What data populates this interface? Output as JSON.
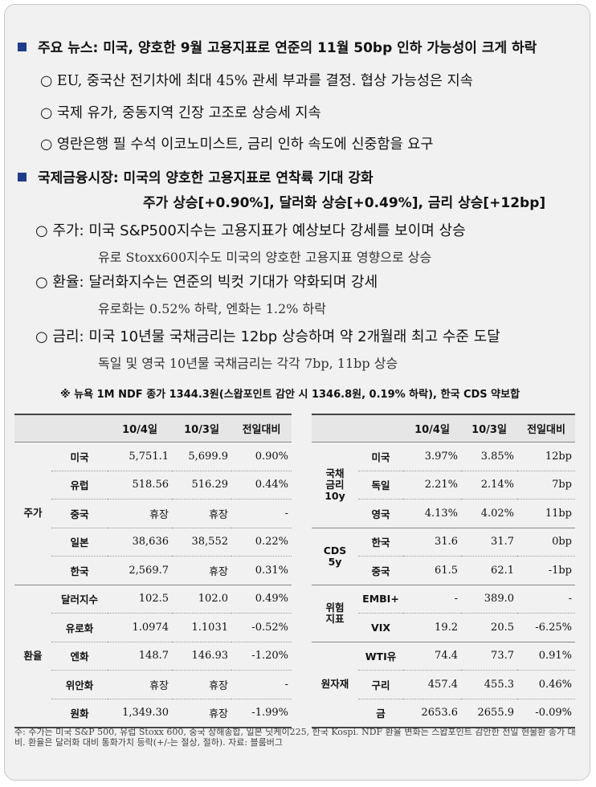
{
  "news_heading": "주요 뉴스: 미국, 양호한 9월 고용지표로 연준의 11월 50bp 인하 가능성이 크게 하락",
  "news_items": [
    "○ EU, 중국산 전기차에 최대 45% 관세 부과를 결정. 협상 가능성은 지속",
    "○ 국제 유가, 중동지역 긴장 고조로 상승세 지속",
    "○ 영란은행 필 수석 이코노미스트, 금리 인하 속도에 신중함을 요구"
  ],
  "market_heading": "국제금융시장: 미국의 양호한 고용지표로 연착륙 기대 강화",
  "market_heading2": "주가 상승[+0.90%], 달러화 상승[+0.49%], 금리 상승[+12bp]",
  "market_items": [
    {
      "main": "○ 주가: 미국 S&P500지수는 고용지표가 예상보다 강세를 보이며 상승",
      "detail": "유로 Stoxx600지수도 미국의 양호한 고용지표 영향으로 상승"
    },
    {
      "main": "○ 환율: 달러화지수는 연준의 빅컷 기대가 약화되며 강세",
      "detail": "유로화는 0.52% 하락, 엔화는 1.2% 하락"
    },
    {
      "main": "○ 금리: 미국 10년물 국채금리는 12bp 상승하며 약 2개월래 최고 수준 도달",
      "detail": "독일 및 영국 10년물 국채금리는 각각 7bp, 11bp 상승"
    }
  ],
  "ndf_note": "※ 뉴욕 1M NDF 종가 1344.3원(스왑포인트 감안 시 1346.8원, 0.19% 하락), 한국 CDS 약보합",
  "table_headers": [
    "10/4일",
    "10/3일",
    "전일대비"
  ],
  "left_table": {
    "groups": [
      {
        "name": "주가",
        "rows": [
          {
            "name": "미국",
            "v1": "5,751.1",
            "v2": "5,699.9",
            "chg": "0.90%"
          },
          {
            "name": "유럽",
            "v1": "518.56",
            "v2": "516.29",
            "chg": "0.44%"
          },
          {
            "name": "중국",
            "v1": "휴장",
            "v2": "휴장",
            "chg": "-"
          },
          {
            "name": "일본",
            "v1": "38,636",
            "v2": "38,552",
            "chg": "0.22%"
          },
          {
            "name": "한국",
            "v1": "2,569.7",
            "v2": "휴장",
            "chg": "0.31%"
          }
        ]
      },
      {
        "name": "환율",
        "rows": [
          {
            "name": "달러지수",
            "v1": "102.5",
            "v2": "102.0",
            "chg": "0.49%"
          },
          {
            "name": "유로화",
            "v1": "1.0974",
            "v2": "1.1031",
            "chg": "-0.52%"
          },
          {
            "name": "엔화",
            "v1": "148.7",
            "v2": "146.93",
            "chg": "-1.20%"
          },
          {
            "name": "위안화",
            "v1": "휴장",
            "v2": "휴장",
            "chg": "-"
          },
          {
            "name": "원화",
            "v1": "1,349.30",
            "v2": "휴장",
            "chg": "-1.99%"
          }
        ]
      }
    ]
  },
  "right_table": {
    "groups": [
      {
        "name_lines": [
          "국채",
          "금리",
          "10y"
        ],
        "rows": [
          {
            "name": "미국",
            "v1": "3.97%",
            "v2": "3.85%",
            "chg": "12bp"
          },
          {
            "name": "독일",
            "v1": "2.21%",
            "v2": "2.14%",
            "chg": "7bp"
          },
          {
            "name": "영국",
            "v1": "4.13%",
            "v2": "4.02%",
            "chg": "11bp"
          }
        ]
      },
      {
        "name_lines": [
          "CDS",
          "5y"
        ],
        "rows": [
          {
            "name": "한국",
            "v1": "31.6",
            "v2": "31.7",
            "chg": "0bp"
          },
          {
            "name": "중국",
            "v1": "61.5",
            "v2": "62.1",
            "chg": "-1bp"
          }
        ]
      },
      {
        "name_lines": [
          "위험",
          "지표"
        ],
        "rows": [
          {
            "name": "EMBI+",
            "v1": "-",
            "v2": "389.0",
            "chg": "-"
          },
          {
            "name": "VIX",
            "v1": "19.2",
            "v2": "20.5",
            "chg": "-6.25%"
          }
        ]
      },
      {
        "name_lines": [
          "원자재"
        ],
        "rows": [
          {
            "name": "WTI유",
            "v1": "74.4",
            "v2": "73.7",
            "chg": "0.91%"
          },
          {
            "name": "구리",
            "v1": "457.4",
            "v2": "455.3",
            "chg": "0.46%"
          },
          {
            "name": "금",
            "v1": "2653.6",
            "v2": "2655.9",
            "chg": "-0.09%"
          }
        ]
      }
    ]
  },
  "footnote": "주: 주가는 미국 S&P 500, 유럽 Stoxx 600, 중국 상해종합, 일본 닛케이225, 한국 Kospi. NDF 환율 변화는 스왑포인트 감안한 전일 현물환 종가 대비. 환율은 달러화 대비 통화가치 등락(+/-는 절상, 절하). 자료: 블룸버그",
  "colors": {
    "bullet": "#1f3c8c",
    "card": "#f1f1f1",
    "header_bg": "#e6e6e6"
  }
}
